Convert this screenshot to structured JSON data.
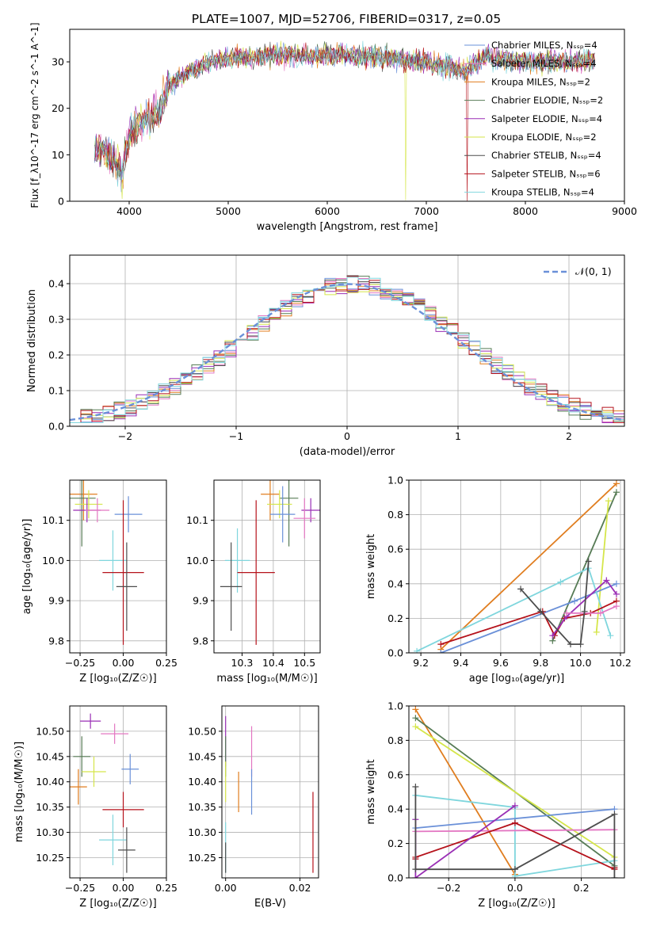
{
  "title": "PLATE=1007, MJD=52706, FIBERID=0317, z=0.05",
  "colors": {
    "CM": "#6a90d8",
    "SM": "#e377c2",
    "KM": "#e07d1f",
    "CE": "#567b55",
    "SE": "#9a2fb5",
    "KE": "#d5e64a",
    "CS": "#4d4d4d",
    "SS": "#b5121b",
    "KS": "#7fd6dd",
    "normal": "#6a90d8"
  },
  "chart_data": [
    {
      "type": "line",
      "id": "spectrum",
      "xlabel": "wavelength [Angstrom, rest frame]",
      "ylabel": "Flux [f_λ10^-17 erg cm^-2 s^-1 A^-1]",
      "xlim": [
        3400,
        9000
      ],
      "ylim": [
        0,
        37
      ],
      "xticks": [
        4000,
        5000,
        6000,
        7000,
        8000,
        9000
      ],
      "yticks": [
        0,
        10,
        20,
        30
      ],
      "grid": false,
      "legend": "upper right",
      "legend_entries": [
        {
          "key": "CM",
          "label": "Chabrier MILES, N_SSP=4"
        },
        {
          "key": "SM",
          "label": "Salpeter MILES, N_SSP=4"
        },
        {
          "key": "KM",
          "label": "Kroupa MILES, N_SSP=2"
        },
        {
          "key": "CE",
          "label": "Chabrier ELODIE, N_SSP=2"
        },
        {
          "key": "SE",
          "label": "Salpeter ELODIE, N_SSP=4"
        },
        {
          "key": "KE",
          "label": "Kroupa ELODIE, N_SSP=2"
        },
        {
          "key": "CS",
          "label": "Chabrier STELIB, N_SSP=4"
        },
        {
          "key": "SS",
          "label": "Salpeter STELIB, N_SSP=6"
        },
        {
          "key": "KS",
          "label": "Kroupa STELIB, N_SSP=4"
        }
      ],
      "continuum": [
        [
          3650,
          12
        ],
        [
          3800,
          10
        ],
        [
          3930,
          6
        ],
        [
          4000,
          14
        ],
        [
          4100,
          17
        ],
        [
          4300,
          19
        ],
        [
          4400,
          25
        ],
        [
          4600,
          28
        ],
        [
          4900,
          30.5
        ],
        [
          5200,
          31
        ],
        [
          5500,
          31.5
        ],
        [
          6000,
          31.5
        ],
        [
          6500,
          31
        ],
        [
          7000,
          30
        ],
        [
          7400,
          28
        ],
        [
          7600,
          31
        ],
        [
          8000,
          30
        ],
        [
          8500,
          30
        ],
        [
          8700,
          30.5
        ]
      ]
    },
    {
      "type": "histogram",
      "id": "residuals",
      "xlabel": "(data-model)/error",
      "ylabel": "Normed distribution",
      "xlim": [
        -2.5,
        2.5
      ],
      "ylim": [
        0,
        0.48
      ],
      "xticks": [
        -2,
        -1,
        0,
        1,
        2
      ],
      "yticks": [
        0.0,
        0.1,
        0.2,
        0.3,
        0.4
      ],
      "grid": true,
      "legend": "upper right",
      "normal_label": "𝒩(0, 1)",
      "bin_width": 0.1
    },
    {
      "type": "errorbar",
      "id": "age_vs_Z",
      "xlabel": "Z [log₁₀(Z/Z☉)]",
      "ylabel": "age  [log₁₀(age/yr)]",
      "xlim": [
        -0.31,
        0.25
      ],
      "ylim": [
        9.77,
        10.2
      ],
      "xticks": [
        -0.25,
        0.0,
        0.25
      ],
      "yticks": [
        9.8,
        9.9,
        10.0,
        10.1
      ],
      "grid": true,
      "points": [
        {
          "key": "KM",
          "x": -0.23,
          "xerr": 0.08,
          "y": 10.165,
          "yerr": 0.065
        },
        {
          "key": "CE",
          "x": -0.24,
          "xerr": 0.08,
          "y": 10.155,
          "yerr": 0.12
        },
        {
          "key": "KE",
          "x": -0.2,
          "xerr": 0.08,
          "y": 10.14,
          "yerr": 0.035
        },
        {
          "key": "SE",
          "x": -0.21,
          "xerr": 0.08,
          "y": 10.125,
          "yerr": 0.03
        },
        {
          "key": "SM",
          "x": -0.15,
          "xerr": 0.07,
          "y": 10.125,
          "yerr": 0.03
        },
        {
          "key": "CM",
          "x": 0.03,
          "xerr": 0.08,
          "y": 10.115,
          "yerr": 0.045
        },
        {
          "key": "KS",
          "x": -0.06,
          "xerr": 0.08,
          "y": 10.0,
          "yerr": 0.075
        },
        {
          "key": "SS",
          "x": 0.0,
          "xerr": 0.12,
          "y": 9.97,
          "yerr": 0.18
        },
        {
          "key": "CS",
          "x": 0.02,
          "xerr": 0.06,
          "y": 9.935,
          "yerr": 0.11
        }
      ]
    },
    {
      "type": "errorbar",
      "id": "age_vs_mass",
      "xlabel": "mass [log₁₀(M/M☉)]",
      "ylabel": "",
      "xlim": [
        10.21,
        10.55
      ],
      "ylim": [
        9.77,
        10.2
      ],
      "xticks": [
        10.3,
        10.4,
        10.5
      ],
      "yticks": [
        9.8,
        9.9,
        10.0,
        10.1
      ],
      "grid": true,
      "points": [
        {
          "key": "KM",
          "x": 10.39,
          "xerr": 0.03,
          "y": 10.165,
          "yerr": 0.065
        },
        {
          "key": "CE",
          "x": 10.45,
          "xerr": 0.03,
          "y": 10.155,
          "yerr": 0.12
        },
        {
          "key": "KE",
          "x": 10.42,
          "xerr": 0.04,
          "y": 10.14,
          "yerr": 0.035
        },
        {
          "key": "SE",
          "x": 10.52,
          "xerr": 0.03,
          "y": 10.125,
          "yerr": 0.03
        },
        {
          "key": "SM",
          "x": 10.5,
          "xerr": 0.035,
          "y": 10.105,
          "yerr": 0.05
        },
        {
          "key": "CM",
          "x": 10.43,
          "xerr": 0.04,
          "y": 10.115,
          "yerr": 0.07
        },
        {
          "key": "KS",
          "x": 10.285,
          "xerr": 0.04,
          "y": 10.0,
          "yerr": 0.08
        },
        {
          "key": "SS",
          "x": 10.345,
          "xerr": 0.06,
          "y": 9.97,
          "yerr": 0.18
        },
        {
          "key": "CS",
          "x": 10.265,
          "xerr": 0.035,
          "y": 9.935,
          "yerr": 0.11
        }
      ]
    },
    {
      "type": "line",
      "id": "mass_weight_vs_age",
      "xlabel": "age  [log₁₀(age/yr)]",
      "ylabel": "mass weight",
      "xlim": [
        9.14,
        10.22
      ],
      "ylim": [
        0,
        1
      ],
      "xticks": [
        9.2,
        9.4,
        9.6,
        9.8,
        10.0,
        10.2
      ],
      "yticks": [
        0.0,
        0.2,
        0.4,
        0.6,
        0.8,
        1.0
      ],
      "grid": true,
      "series": [
        {
          "key": "KM",
          "x": [
            9.3,
            10.18
          ],
          "y": [
            0.02,
            0.98
          ]
        },
        {
          "key": "CE",
          "x": [
            9.86,
            10.18
          ],
          "y": [
            0.07,
            0.93
          ]
        },
        {
          "key": "KE",
          "x": [
            10.08,
            10.14
          ],
          "y": [
            0.12,
            0.88
          ]
        },
        {
          "key": "CM",
          "x": [
            9.3,
            9.97,
            10.18
          ],
          "y": [
            0.0,
            0.3,
            0.4
          ]
        },
        {
          "key": "KS",
          "x": [
            9.18,
            9.9,
            10.04,
            10.15
          ],
          "y": [
            0.01,
            0.41,
            0.49,
            0.1
          ]
        },
        {
          "key": "SS",
          "x": [
            9.3,
            9.81,
            9.87,
            9.92,
            10.05,
            10.18
          ],
          "y": [
            0.05,
            0.24,
            0.1,
            0.2,
            0.23,
            0.3
          ]
        },
        {
          "key": "SE",
          "x": [
            9.86,
            9.93,
            10.13,
            10.18
          ],
          "y": [
            0.1,
            0.21,
            0.42,
            0.34
          ]
        },
        {
          "key": "SM",
          "x": [
            9.93,
            10.1,
            10.18
          ],
          "y": [
            0.23,
            0.23,
            0.27
          ]
        },
        {
          "key": "CS",
          "x": [
            9.7,
            9.8,
            9.95,
            10.0,
            10.02,
            10.04
          ],
          "y": [
            0.37,
            0.24,
            0.05,
            0.05,
            0.24,
            0.53
          ]
        }
      ]
    },
    {
      "type": "errorbar",
      "id": "mass_vs_Z",
      "xlabel": "Z [log₁₀(Z/Z☉)]",
      "ylabel": "mass [log₁₀(M/M☉)]",
      "xlim": [
        -0.31,
        0.25
      ],
      "ylim": [
        10.21,
        10.55
      ],
      "xticks": [
        -0.25,
        0.0,
        0.25
      ],
      "yticks": [
        10.25,
        10.3,
        10.35,
        10.4,
        10.45,
        10.5
      ],
      "grid": true,
      "points": [
        {
          "key": "SE",
          "x": -0.19,
          "xerr": 0.06,
          "y": 10.52,
          "yerr": 0.015
        },
        {
          "key": "SM",
          "x": -0.05,
          "xerr": 0.08,
          "y": 10.495,
          "yerr": 0.02
        },
        {
          "key": "CE",
          "x": -0.24,
          "xerr": 0.05,
          "y": 10.45,
          "yerr": 0.04
        },
        {
          "key": "CM",
          "x": 0.04,
          "xerr": 0.05,
          "y": 10.425,
          "yerr": 0.03
        },
        {
          "key": "KE",
          "x": -0.17,
          "xerr": 0.07,
          "y": 10.42,
          "yerr": 0.03
        },
        {
          "key": "KM",
          "x": -0.26,
          "xerr": 0.05,
          "y": 10.39,
          "yerr": 0.035
        },
        {
          "key": "SS",
          "x": 0.0,
          "xerr": 0.12,
          "y": 10.345,
          "yerr": 0.035
        },
        {
          "key": "KS",
          "x": -0.06,
          "xerr": 0.08,
          "y": 10.285,
          "yerr": 0.05
        },
        {
          "key": "CS",
          "x": 0.02,
          "xerr": 0.05,
          "y": 10.265,
          "yerr": 0.045
        }
      ]
    },
    {
      "type": "errorbar",
      "id": "mass_vs_ebv",
      "xlabel": "E(B-V)",
      "ylabel": "",
      "xlim": [
        -0.001,
        0.025
      ],
      "ylim": [
        10.21,
        10.55
      ],
      "xticks": [
        0.0,
        0.02
      ],
      "yticks": [
        10.25,
        10.3,
        10.35,
        10.4,
        10.45,
        10.5
      ],
      "grid": true,
      "points": [
        {
          "key": "SE",
          "x": 0.0,
          "xerr": 0,
          "y": 10.48,
          "yerr": 0.05
        },
        {
          "key": "SM",
          "x": 0.007,
          "xerr": 0,
          "y": 10.46,
          "yerr": 0.05
        },
        {
          "key": "CE",
          "x": 0.0,
          "xerr": 0,
          "y": 10.45,
          "yerr": 0.04
        },
        {
          "key": "KE",
          "x": 0.0,
          "xerr": 0,
          "y": 10.4,
          "yerr": 0.04
        },
        {
          "key": "CM",
          "x": 0.007,
          "xerr": 0,
          "y": 10.38,
          "yerr": 0.045
        },
        {
          "key": "KM",
          "x": 0.0035,
          "xerr": 0,
          "y": 10.38,
          "yerr": 0.04
        },
        {
          "key": "SS",
          "x": 0.0235,
          "xerr": 0,
          "y": 10.3,
          "yerr": 0.08
        },
        {
          "key": "KS",
          "x": 0.0,
          "xerr": 0,
          "y": 10.27,
          "yerr": 0.05
        },
        {
          "key": "CS",
          "x": 0.0,
          "xerr": 0,
          "y": 10.25,
          "yerr": 0.03
        }
      ]
    },
    {
      "type": "line",
      "id": "mass_weight_vs_Z",
      "xlabel": "Z [log₁₀(Z/Z☉)]",
      "ylabel": "mass weight",
      "xlim": [
        -0.32,
        0.33
      ],
      "ylim": [
        0,
        1
      ],
      "xticks": [
        -0.2,
        0.0,
        0.2
      ],
      "yticks": [
        0.0,
        0.2,
        0.4,
        0.6,
        0.8,
        1.0
      ],
      "grid": true,
      "series": [
        {
          "key": "KM",
          "x": [
            -0.3,
            0.0
          ],
          "y": [
            0.98,
            0.02
          ]
        },
        {
          "key": "CE",
          "x": [
            -0.3,
            0.3
          ],
          "y": [
            0.93,
            0.07
          ]
        },
        {
          "key": "KE",
          "x": [
            -0.3,
            0.3
          ],
          "y": [
            0.88,
            0.12
          ]
        },
        {
          "key": "KS",
          "x": [
            -0.3,
            0.0,
            0.0,
            0.3
          ],
          "y": [
            0.48,
            0.41,
            0.01,
            0.1
          ]
        },
        {
          "key": "CM",
          "x": [
            -0.3,
            0.3
          ],
          "y": [
            0.29,
            0.4
          ]
        },
        {
          "key": "SM",
          "x": [
            -0.3,
            0.3
          ],
          "y": [
            0.27,
            0.28
          ]
        },
        {
          "key": "SS",
          "x": [
            -0.3,
            -0.3,
            0.0,
            0.3,
            0.3
          ],
          "y": [
            0.11,
            0.12,
            0.32,
            0.05,
            0.06
          ]
        },
        {
          "key": "SE",
          "x": [
            -0.3,
            -0.3,
            0.0
          ],
          "y": [
            0.34,
            0.0,
            0.42
          ]
        },
        {
          "key": "CS",
          "x": [
            -0.3,
            -0.3,
            0.0,
            0.3,
            0.3
          ],
          "y": [
            0.53,
            0.05,
            0.05,
            0.37,
            0.0
          ]
        }
      ]
    }
  ]
}
